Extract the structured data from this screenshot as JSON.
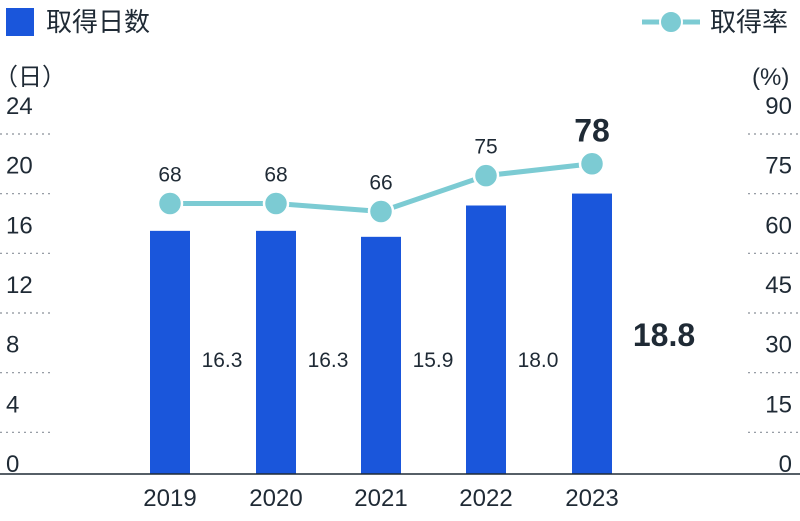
{
  "chart_data": {
    "type": "bar+line",
    "categories": [
      "2019",
      "2020",
      "2021",
      "2022",
      "2023"
    ],
    "series": [
      {
        "name": "取得日数",
        "kind": "bar",
        "axis": "left",
        "color": "#1a56db",
        "values": [
          16.3,
          16.3,
          15.9,
          18.0,
          18.8
        ],
        "labels": [
          "16.3",
          "16.3",
          "15.9",
          "18.0",
          "18.8"
        ]
      },
      {
        "name": "取得率",
        "kind": "line",
        "axis": "right",
        "color": "#7ccbd3",
        "values": [
          68,
          68,
          66,
          75,
          78
        ],
        "labels": [
          "68",
          "68",
          "66",
          "75",
          "78"
        ]
      }
    ],
    "left_axis": {
      "unit": "（日）",
      "ticks": [
        "0",
        "4",
        "8",
        "12",
        "16",
        "20",
        "24"
      ],
      "range": [
        0,
        24
      ]
    },
    "right_axis": {
      "unit": "(%)",
      "ticks": [
        "0",
        "15",
        "30",
        "45",
        "60",
        "75",
        "90"
      ],
      "range": [
        0,
        90
      ]
    },
    "legend": [
      "取得日数",
      "取得率"
    ],
    "highlight_index": 4
  }
}
